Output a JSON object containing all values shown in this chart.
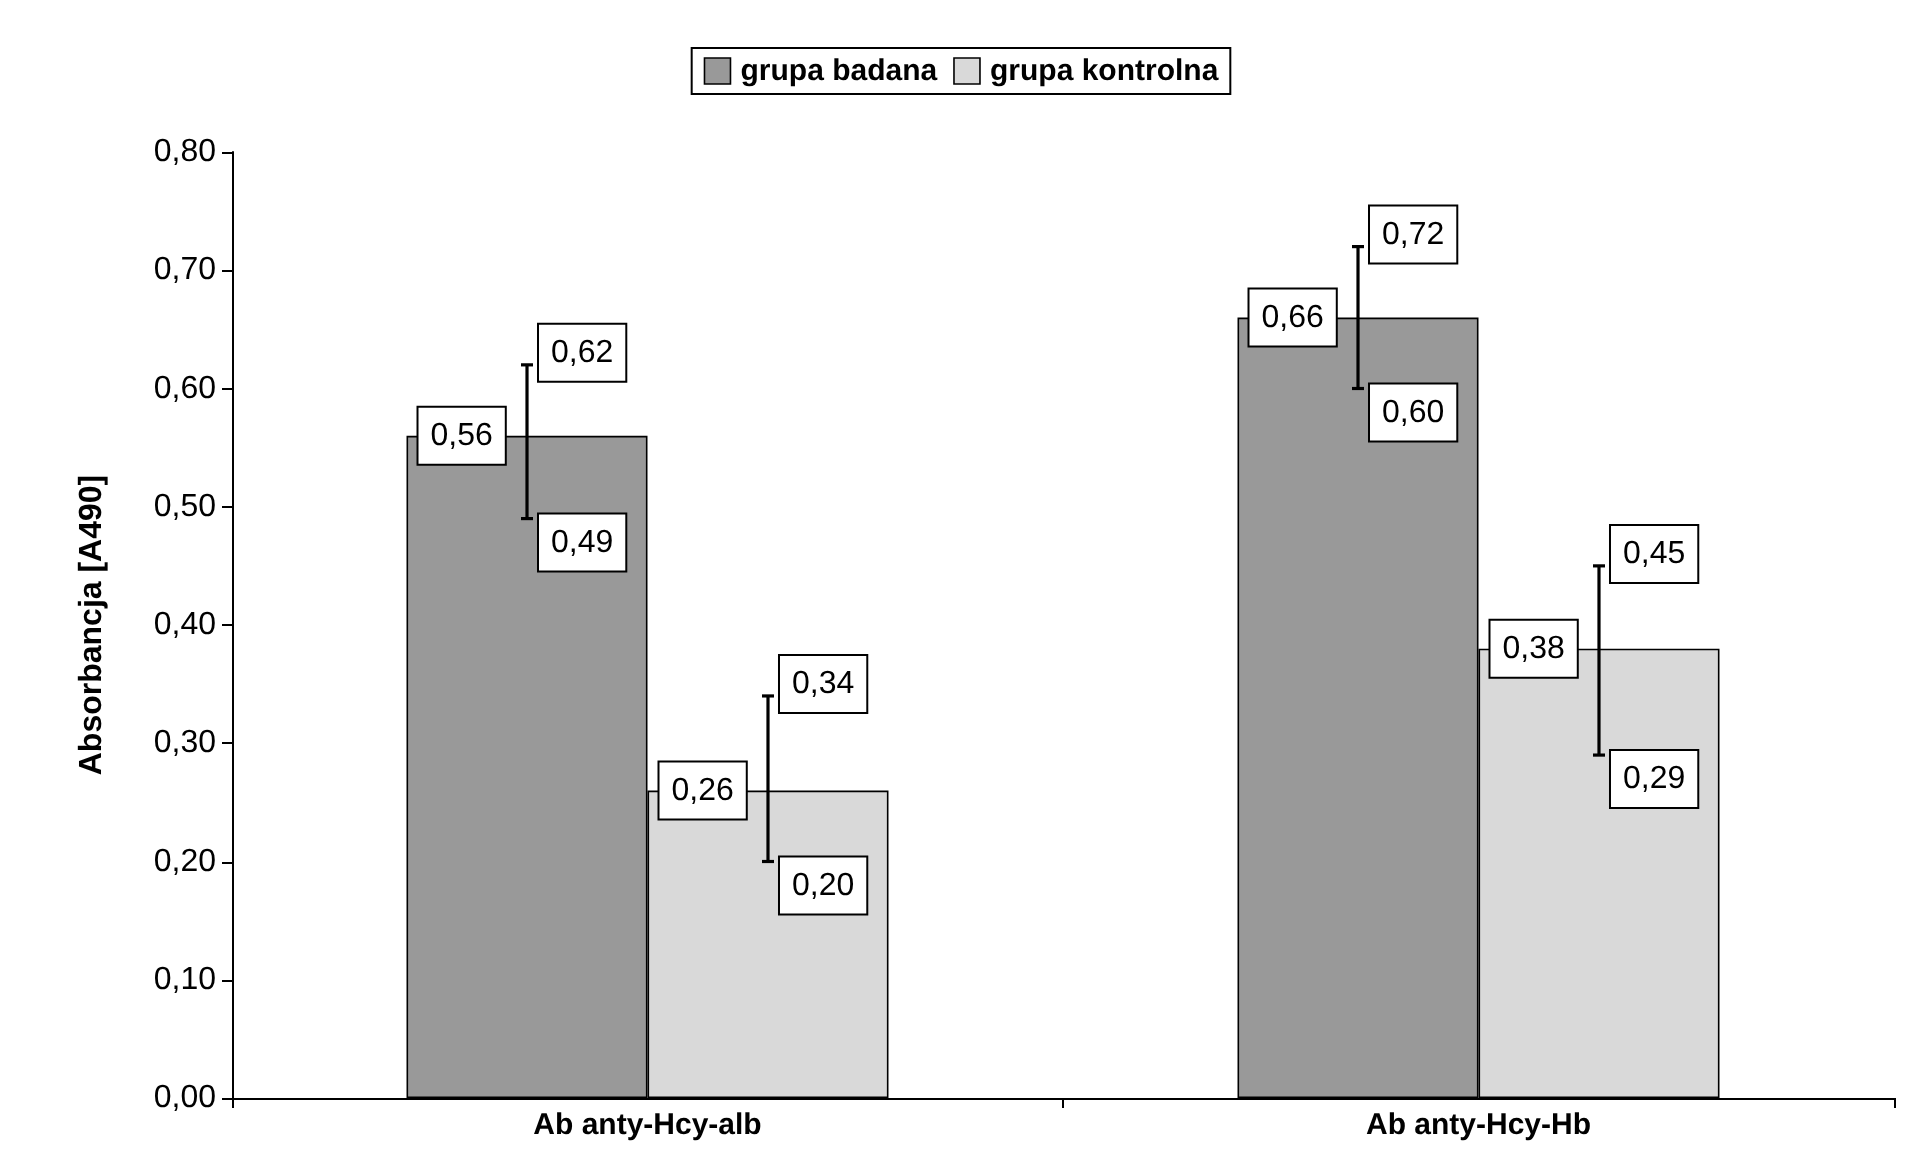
{
  "chart_data": {
    "type": "bar",
    "ylabel": "Absorbancja [A490]",
    "categories": [
      "Ab anty-Hcy-alb",
      "Ab anty-Hcy-Hb"
    ],
    "series": [
      {
        "name": "grupa badana",
        "color": "#999999",
        "values": [
          0.56,
          0.66
        ],
        "errors": [
          [
            0.49,
            0.62
          ],
          [
            0.6,
            0.72
          ]
        ],
        "value_labels": [
          "0,56",
          "0,66"
        ]
      },
      {
        "name": "grupa kontrolna",
        "color": "#d9d9d9",
        "values": [
          0.26,
          0.38
        ],
        "errors": [
          [
            0.2,
            0.34
          ],
          [
            0.29,
            0.45
          ]
        ],
        "value_labels": [
          "0,26",
          "0,38"
        ]
      }
    ],
    "ylim": [
      0,
      0.8
    ],
    "yticks": [
      {
        "value": 0,
        "label": "0,00"
      },
      {
        "value": 0.1,
        "label": "0,10"
      },
      {
        "value": 0.2,
        "label": "0,20"
      },
      {
        "value": 0.3,
        "label": "0,30"
      },
      {
        "value": 0.4,
        "label": "0,40"
      },
      {
        "value": 0.5,
        "label": "0,50"
      },
      {
        "value": 0.6,
        "label": "0,60"
      },
      {
        "value": 0.7,
        "label": "0,70"
      },
      {
        "value": 0.8,
        "label": "0,80"
      }
    ],
    "annotations": [
      "0,62",
      "0,49",
      "0,72",
      "0,60",
      "0,34",
      "0,20",
      "0,45",
      "0,29"
    ],
    "grid": false,
    "legend": "top"
  }
}
